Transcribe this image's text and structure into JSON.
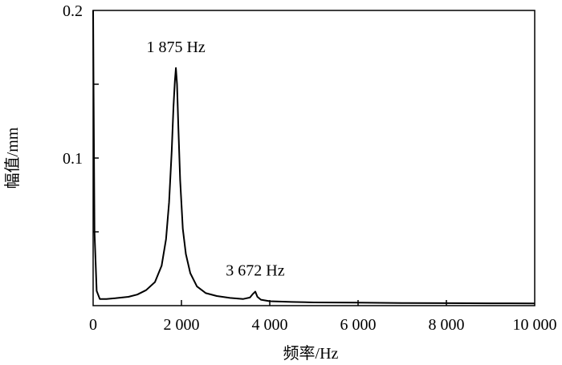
{
  "chart_data": {
    "type": "line",
    "title": "",
    "xlabel": "频率/Hz",
    "ylabel": "幅值/mm",
    "xlim": [
      0,
      10000
    ],
    "ylim": [
      0,
      0.2
    ],
    "x_ticks": [
      0,
      2000,
      4000,
      6000,
      8000,
      10000
    ],
    "x_tick_labels": [
      "0",
      "2 000",
      "4 000",
      "6 000",
      "8 000",
      "10 000"
    ],
    "y_ticks": [
      0.1,
      0.2
    ],
    "y_tick_labels": [
      "0.1",
      "0.2"
    ],
    "grid": false,
    "series": [
      {
        "x": [
          0,
          10,
          30,
          80,
          150,
          300,
          500,
          800,
          1000,
          1200,
          1400,
          1550,
          1650,
          1720,
          1780,
          1820,
          1850,
          1875,
          1900,
          1930,
          1970,
          2030,
          2100,
          2200,
          2350,
          2550,
          2800,
          3100,
          3400,
          3550,
          3620,
          3672,
          3720,
          3800,
          4000,
          4500,
          5000,
          6000,
          7000,
          8000,
          9000,
          10000
        ],
        "y": [
          0.2,
          0.15,
          0.05,
          0.01,
          0.0045,
          0.0045,
          0.005,
          0.006,
          0.0075,
          0.0105,
          0.016,
          0.027,
          0.045,
          0.07,
          0.105,
          0.135,
          0.152,
          0.161,
          0.15,
          0.12,
          0.085,
          0.052,
          0.035,
          0.022,
          0.013,
          0.0085,
          0.0065,
          0.0052,
          0.0045,
          0.0055,
          0.008,
          0.0095,
          0.006,
          0.004,
          0.003,
          0.0025,
          0.0022,
          0.002,
          0.0018,
          0.0017,
          0.0016,
          0.0015
        ]
      }
    ],
    "annotations": [
      {
        "text": "1 875 Hz",
        "x": 1875,
        "y": 0.161
      },
      {
        "text": "3 672 Hz",
        "x": 3672,
        "y": 0.0095
      }
    ]
  }
}
